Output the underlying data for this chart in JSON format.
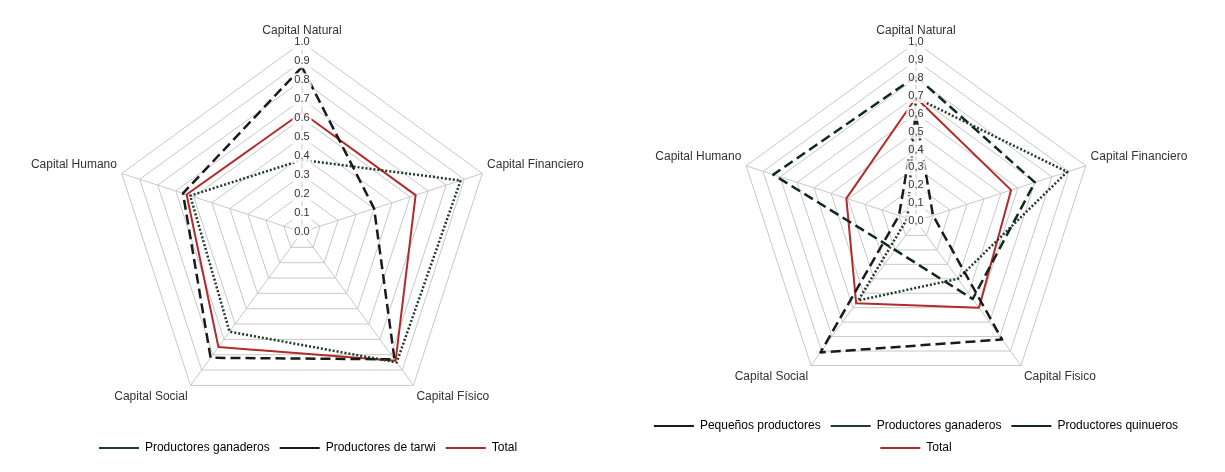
{
  "chart_data": [
    {
      "type": "radar",
      "categories": [
        "Capital Natural",
        "Capital Financiero",
        "Capital Físico",
        "Capital Social",
        "Capital Humano"
      ],
      "ylim": [
        0,
        1
      ],
      "yticks": [
        {
          "value": 0,
          "label": "0.0"
        },
        {
          "value": 0.1,
          "label": "0.1"
        },
        {
          "value": 0.2,
          "label": "0.2"
        },
        {
          "value": 0.3,
          "label": "0.3"
        },
        {
          "value": 0.4,
          "label": "0.4"
        },
        {
          "value": 0.5,
          "label": "0.5"
        },
        {
          "value": 0.6,
          "label": "0.6"
        },
        {
          "value": 0.7,
          "label": "0.7"
        },
        {
          "value": 0.8,
          "label": "0.8"
        },
        {
          "value": 0.9,
          "label": "0.9"
        },
        {
          "value": 1,
          "label": "1.0"
        }
      ],
      "grid": true,
      "legend": "bottom",
      "marker": "none",
      "series": [
        {
          "name": "Productores ganaderos",
          "color": "#1f3b2a",
          "line_style": "dotted",
          "values": [
            0.38,
            0.88,
            0.85,
            0.65,
            0.62
          ]
        },
        {
          "name": "Productores de tarwi",
          "color": "#1a1a1a",
          "line_style": "dashed",
          "values": [
            0.87,
            0.4,
            0.83,
            0.82,
            0.66
          ]
        },
        {
          "name": "Total",
          "color": "#b22a2a",
          "line_style": "solid",
          "values": [
            0.63,
            0.63,
            0.84,
            0.75,
            0.64
          ]
        }
      ]
    },
    {
      "type": "radar",
      "categories": [
        "Capital Natural",
        "Capital Financiero",
        "Capital Fisico",
        "Capital Social",
        "Capital Humano"
      ],
      "ylim": [
        0,
        1
      ],
      "yticks": [
        {
          "value": 0,
          "label": "0,0"
        },
        {
          "value": 0.1,
          "label": "0,1"
        },
        {
          "value": 0.2,
          "label": "0,2"
        },
        {
          "value": 0.3,
          "label": "0,3"
        },
        {
          "value": 0.4,
          "label": "0,4"
        },
        {
          "value": 0.5,
          "label": "0,5"
        },
        {
          "value": 0.6,
          "label": "0,6"
        },
        {
          "value": 0.7,
          "label": "0,7"
        },
        {
          "value": 0.8,
          "label": "0,8"
        },
        {
          "value": 0.9,
          "label": "0,9"
        },
        {
          "value": 1,
          "label": "1,0"
        }
      ],
      "grid": true,
      "legend": "bottom",
      "marker": "none",
      "series": [
        {
          "name": "Pequeños productores",
          "color": "#1a1a1a",
          "line_style": "dashed",
          "values": [
            0.59,
            0.1,
            0.82,
            0.91,
            0.1
          ]
        },
        {
          "name": "Productores ganaderos",
          "color": "#1f3b2a",
          "line_style": "dotted",
          "values": [
            0.69,
            0.89,
            0.4,
            0.55,
            0.05
          ]
        },
        {
          "name": "Productores quinueros",
          "color": "#0f2a1c",
          "line_style": "dashed",
          "values": [
            0.81,
            0.7,
            0.54,
            0.2,
            0.84
          ]
        },
        {
          "name": "Total",
          "color": "#b22a2a",
          "line_style": "solid",
          "values": [
            0.69,
            0.56,
            0.6,
            0.57,
            0.41
          ]
        }
      ]
    }
  ]
}
